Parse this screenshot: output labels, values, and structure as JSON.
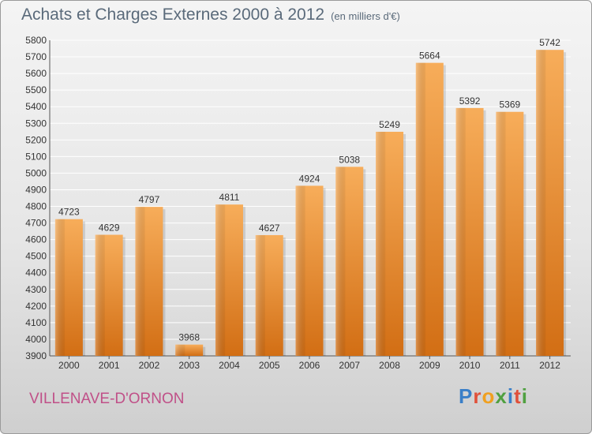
{
  "title": "Achats et Charges Externes 2000 à 2012",
  "subtitle": "(en milliers d'€)",
  "place_name": "VILLENAVE-D'ORNON",
  "logo": {
    "text": "Proxiti",
    "colors": [
      "#3a7fc8",
      "#e0503a",
      "#f0a020",
      "#50a040",
      "#3a7fc8",
      "#e0503a",
      "#50a040"
    ]
  },
  "colors": {
    "bar": "#f0922e",
    "bar_light": "#f7ad5a",
    "bar_dark": "#d26e14",
    "grid": "#ffffff",
    "axis": "#555555"
  },
  "chart_data": {
    "type": "bar",
    "categories": [
      "2000",
      "2001",
      "2002",
      "2003",
      "2004",
      "2005",
      "2006",
      "2007",
      "2008",
      "2009",
      "2010",
      "2011",
      "2012"
    ],
    "values": [
      4723,
      4629,
      4797,
      3968,
      4811,
      4627,
      4924,
      5038,
      5249,
      5664,
      5392,
      5369,
      5742
    ],
    "ylim": [
      3900,
      5800
    ],
    "ytick_step": 100,
    "grid": true,
    "data_labels": true
  }
}
